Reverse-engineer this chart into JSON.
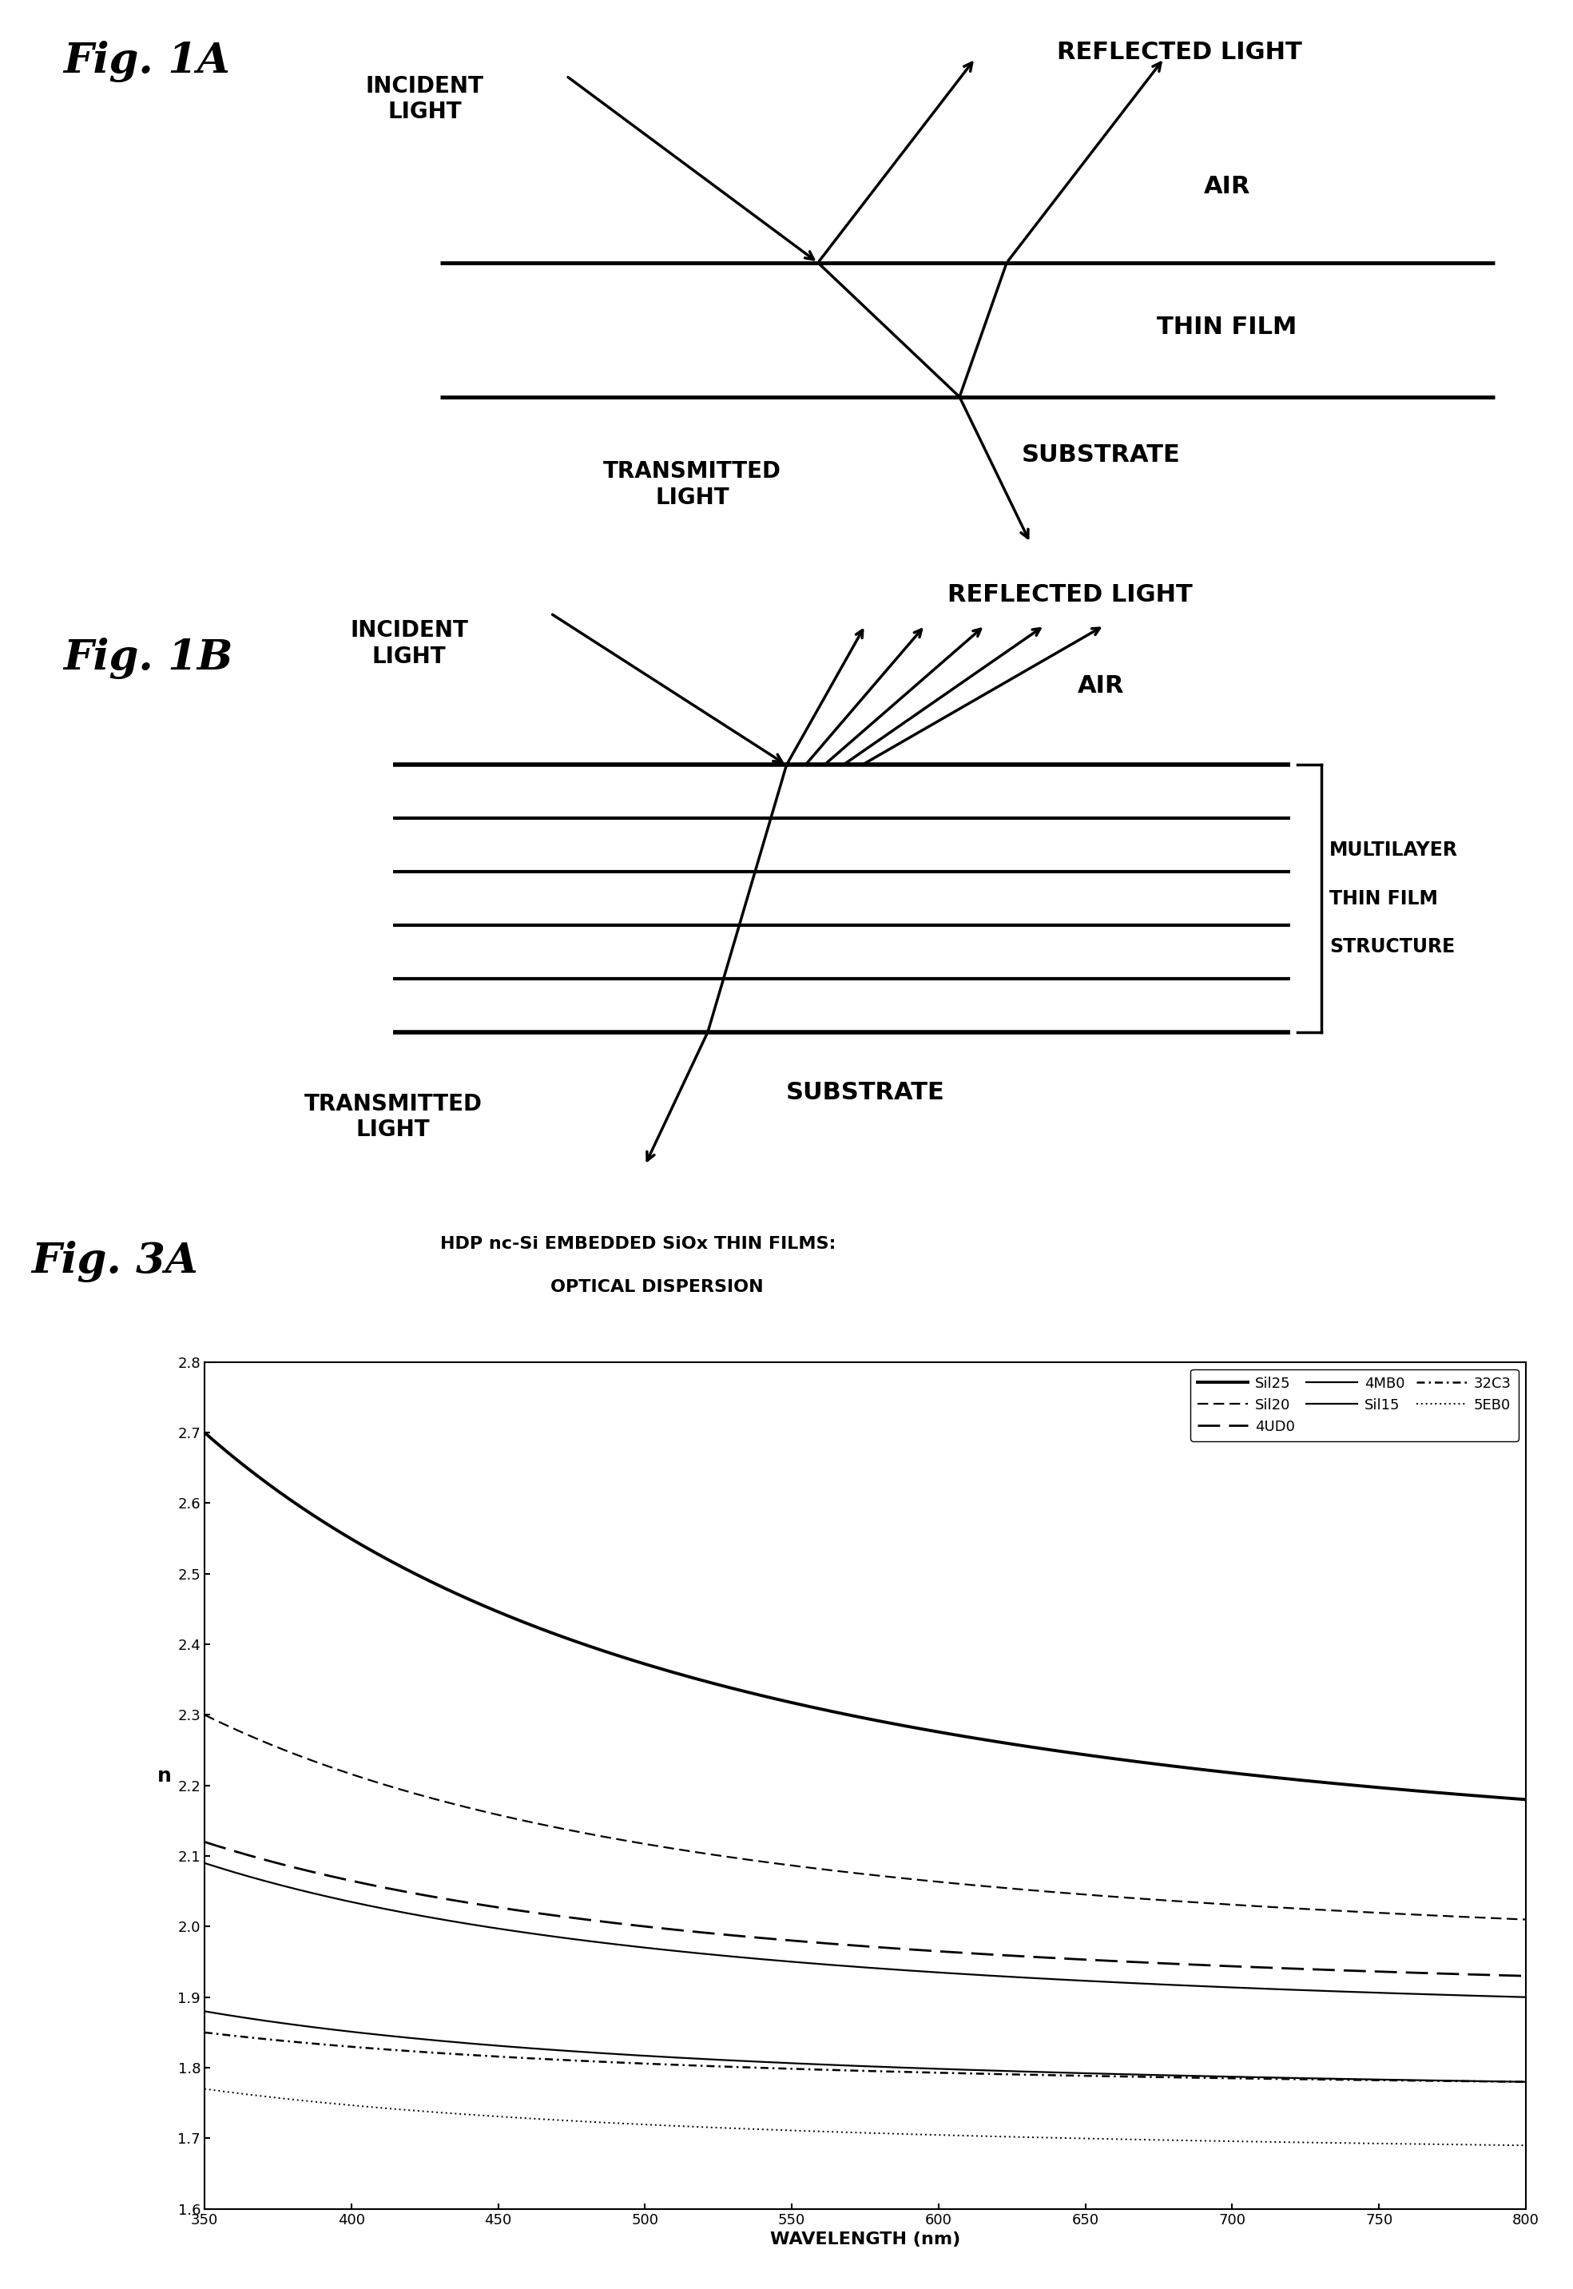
{
  "background_color": "#ffffff",
  "fig1a_label": "Fig. 1A",
  "fig1b_label": "Fig. 1B",
  "fig3a_label": "Fig. 3A",
  "fig3a_title_line1": "HDP nc-Si EMBEDDED SiOx THIN FILMS:",
  "fig3a_title_line2": "OPTICAL DISPERSION",
  "xlabel": "WAVELENGTH (nm)",
  "ylabel": "n",
  "xlim": [
    350,
    800
  ],
  "ylim": [
    1.6,
    2.8
  ],
  "xticks": [
    350,
    400,
    450,
    500,
    550,
    600,
    650,
    700,
    750,
    800
  ],
  "yticks": [
    1.6,
    1.7,
    1.8,
    1.9,
    2.0,
    2.1,
    2.2,
    2.3,
    2.4,
    2.5,
    2.6,
    2.7,
    2.8
  ],
  "curves": {
    "Sil25": {
      "n_350": 2.7,
      "n_800": 2.18
    },
    "Sil20": {
      "n_350": 2.3,
      "n_800": 2.01
    },
    "4UD0": {
      "n_350": 2.12,
      "n_800": 1.93
    },
    "4MB0": {
      "n_350": 2.09,
      "n_800": 1.9
    },
    "Sil15": {
      "n_350": 1.88,
      "n_800": 1.78
    },
    "32C3": {
      "n_350": 1.85,
      "n_800": 1.78
    },
    "5EB0": {
      "n_350": 1.77,
      "n_800": 1.69
    }
  }
}
